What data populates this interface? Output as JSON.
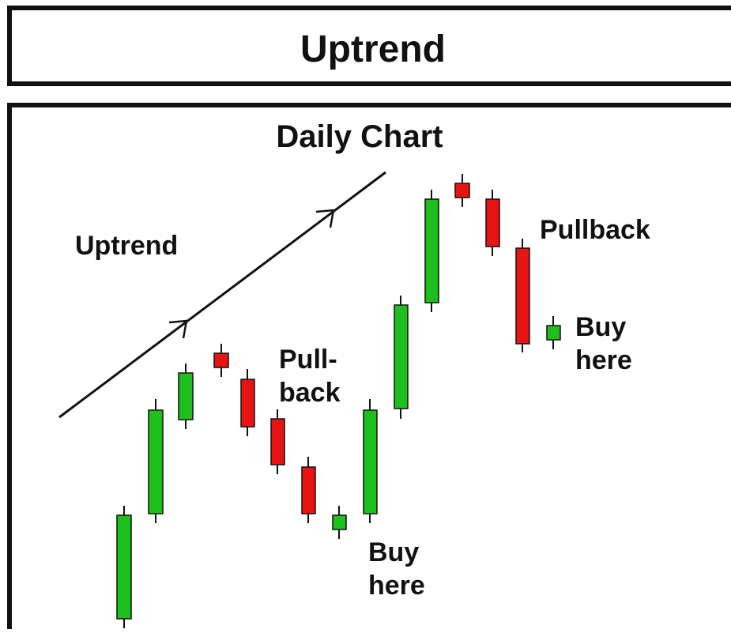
{
  "header": {
    "title": "Uptrend"
  },
  "chart": {
    "title": "Daily Chart",
    "labels": {
      "trend": "Uptrend",
      "first_pullback": [
        "Pull-",
        "back"
      ],
      "first_buy": [
        "Buy",
        "here"
      ],
      "second_pullback": "Pullback",
      "second_buy": [
        "Buy",
        "here"
      ]
    }
  }
}
